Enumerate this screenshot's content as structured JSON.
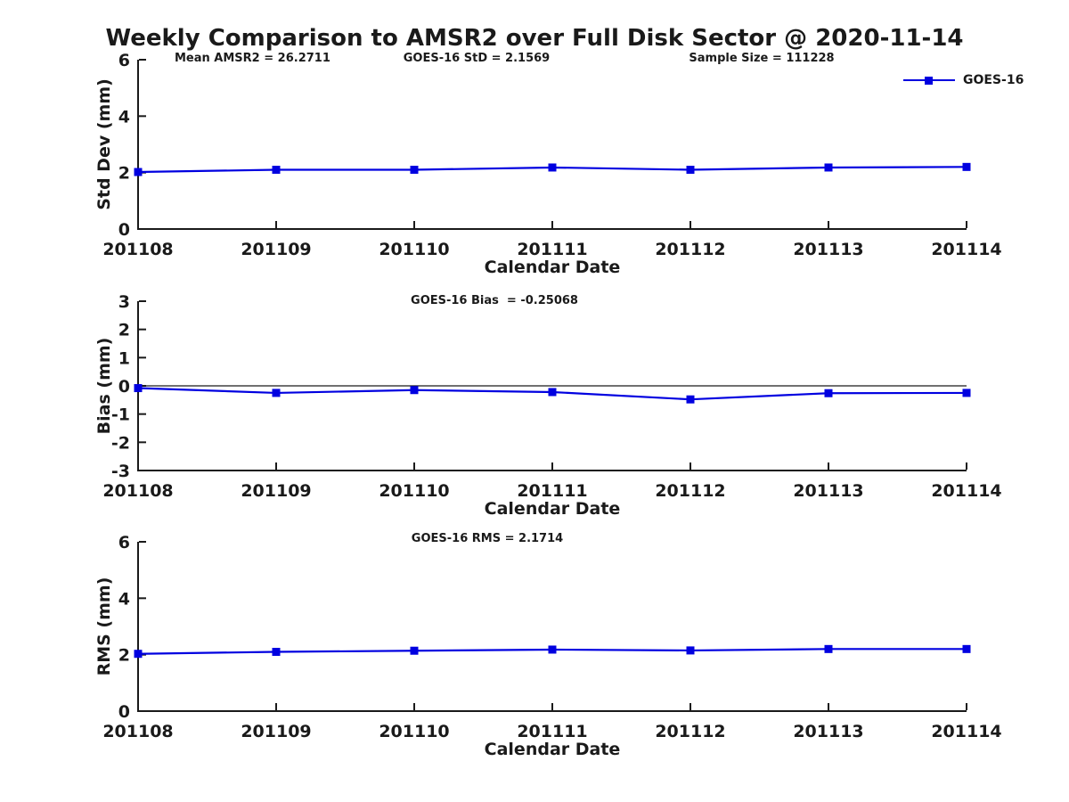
{
  "figure": {
    "title": "Weekly Comparison to AMSR2 over Full Disk Sector @ 2020-11-14",
    "legend": {
      "label": "GOES-16"
    }
  },
  "colors": {
    "series_blue": "#0000e0",
    "axis_black": "#1a1a1a"
  },
  "chart_data": [
    {
      "type": "line",
      "name": "std-dev",
      "ylabel": "Std Dev (mm)",
      "xlabel": "Calendar Date",
      "x_categories": [
        "201108",
        "201109",
        "201110",
        "201111",
        "201112",
        "201113",
        "201114"
      ],
      "ylim": [
        0,
        6
      ],
      "yticks": [
        0,
        2,
        4,
        6
      ],
      "zero_line": false,
      "grid": false,
      "legend_position": "top-right",
      "annotations": [
        "Mean AMSR2 = 26.2711",
        "GOES-16 StD = 2.1569",
        "Sample Size = 111228"
      ],
      "series": [
        {
          "name": "GOES-16",
          "color": "#0000e0",
          "marker": "square",
          "values": [
            2.02,
            2.1,
            2.1,
            2.18,
            2.1,
            2.18,
            2.2
          ]
        }
      ]
    },
    {
      "type": "line",
      "name": "bias",
      "ylabel": "Bias (mm)",
      "xlabel": "Calendar Date",
      "x_categories": [
        "201108",
        "201109",
        "201110",
        "201111",
        "201112",
        "201113",
        "201114"
      ],
      "ylim": [
        -3,
        3
      ],
      "yticks": [
        -3,
        -2,
        -1,
        0,
        1,
        2,
        3
      ],
      "zero_line": true,
      "grid": false,
      "annotations": [
        "GOES-16 Bias  = -0.25068"
      ],
      "series": [
        {
          "name": "GOES-16",
          "color": "#0000e0",
          "marker": "square",
          "values": [
            -0.08,
            -0.25,
            -0.15,
            -0.22,
            -0.48,
            -0.26,
            -0.25
          ]
        }
      ]
    },
    {
      "type": "line",
      "name": "rms",
      "ylabel": "RMS (mm)",
      "xlabel": "Calendar Date",
      "x_categories": [
        "201108",
        "201109",
        "201110",
        "201111",
        "201112",
        "201113",
        "201114"
      ],
      "ylim": [
        0,
        6
      ],
      "yticks": [
        0,
        2,
        4,
        6
      ],
      "zero_line": false,
      "grid": false,
      "annotations": [
        "GOES-16 RMS = 2.1714"
      ],
      "series": [
        {
          "name": "GOES-16",
          "color": "#0000e0",
          "marker": "square",
          "values": [
            2.03,
            2.1,
            2.14,
            2.18,
            2.15,
            2.2,
            2.2
          ]
        }
      ]
    }
  ]
}
